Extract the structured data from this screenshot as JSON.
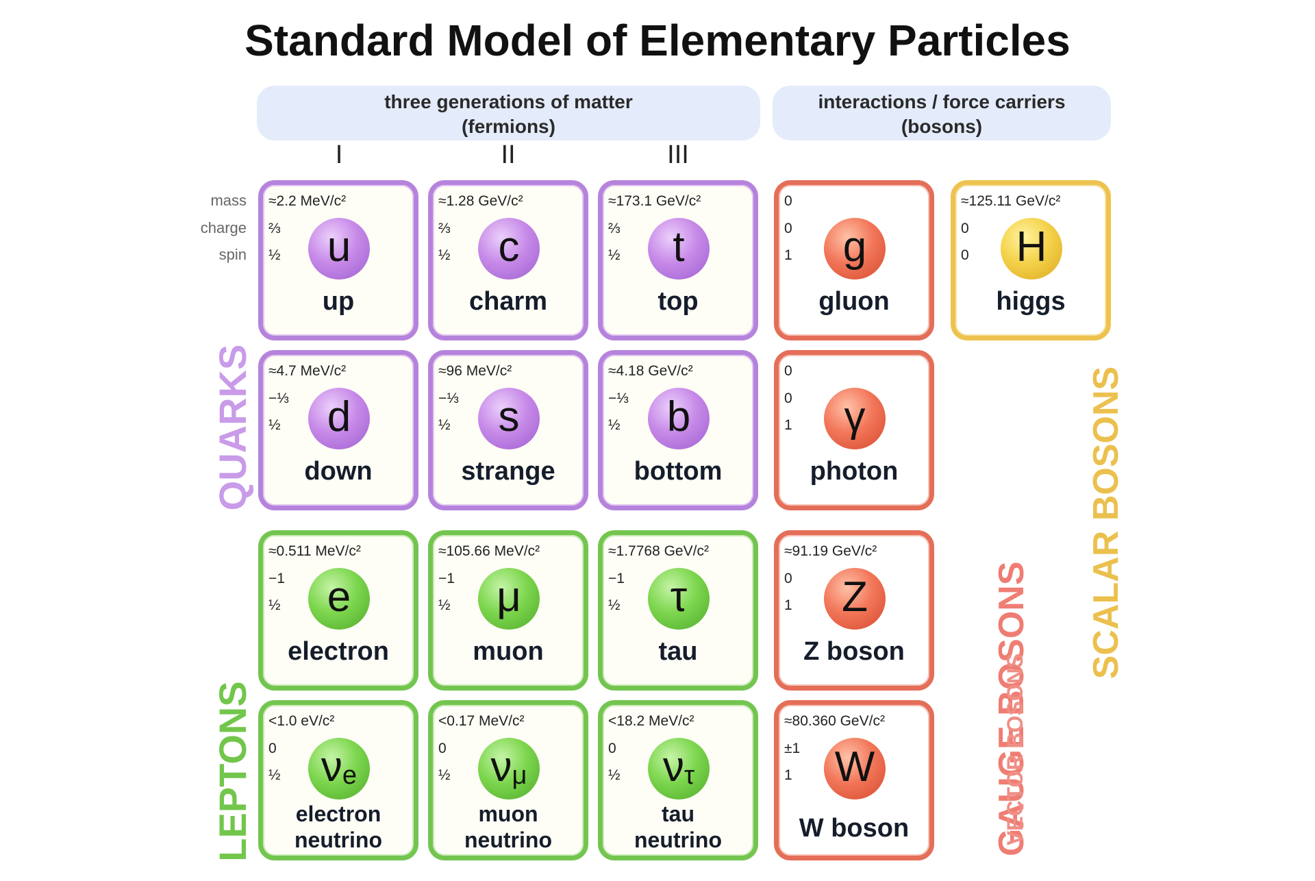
{
  "title": "Standard Model of Elementary Particles",
  "headers": {
    "fermions_line1": "three generations of matter",
    "fermions_line2": "(fermions)",
    "bosons_line1": "interactions / force carriers",
    "bosons_line2": "(bosons)"
  },
  "generations": [
    "I",
    "II",
    "III"
  ],
  "row_labels": {
    "mass": "mass",
    "charge": "charge",
    "spin": "spin"
  },
  "group_labels": {
    "quarks": "QUARKS",
    "leptons": "LEPTONS",
    "gauge_bosons": "GAUGE BOSONS",
    "vector_bosons": "VECTOR BOSONS",
    "scalar_bosons": "SCALAR BOSONS"
  },
  "colors": {
    "quark": "#b583dc",
    "lepton": "#73c54f",
    "gauge": "#e46e58",
    "scalar": "#edc24e",
    "header_bg": "#e4ebfa"
  },
  "particles": {
    "up": {
      "mass": "≈2.2 MeV/c²",
      "charge": "⅔",
      "spin": "½",
      "symbol": "u",
      "name": "up"
    },
    "charm": {
      "mass": "≈1.28 GeV/c²",
      "charge": "⅔",
      "spin": "½",
      "symbol": "c",
      "name": "charm"
    },
    "top": {
      "mass": "≈173.1 GeV/c²",
      "charge": "⅔",
      "spin": "½",
      "symbol": "t",
      "name": "top"
    },
    "gluon": {
      "mass": "0",
      "charge": "0",
      "spin": "1",
      "symbol": "g",
      "name": "gluon"
    },
    "higgs": {
      "mass": "≈125.11 GeV/c²",
      "charge": "0",
      "spin": "0",
      "symbol": "H",
      "name": "higgs"
    },
    "down": {
      "mass": "≈4.7 MeV/c²",
      "charge": "−⅓",
      "spin": "½",
      "symbol": "d",
      "name": "down"
    },
    "strange": {
      "mass": "≈96 MeV/c²",
      "charge": "−⅓",
      "spin": "½",
      "symbol": "s",
      "name": "strange"
    },
    "bottom": {
      "mass": "≈4.18 GeV/c²",
      "charge": "−⅓",
      "spin": "½",
      "symbol": "b",
      "name": "bottom"
    },
    "photon": {
      "mass": "0",
      "charge": "0",
      "spin": "1",
      "symbol": "γ",
      "name": "photon"
    },
    "electron": {
      "mass": "≈0.511 MeV/c²",
      "charge": "−1",
      "spin": "½",
      "symbol": "e",
      "name": "electron"
    },
    "muon": {
      "mass": "≈105.66 MeV/c²",
      "charge": "−1",
      "spin": "½",
      "symbol": "μ",
      "name": "muon"
    },
    "tau": {
      "mass": "≈1.7768 GeV/c²",
      "charge": "−1",
      "spin": "½",
      "symbol": "τ",
      "name": "tau"
    },
    "zboson": {
      "mass": "≈91.19 GeV/c²",
      "charge": "0",
      "spin": "1",
      "symbol": "Z",
      "name": "Z boson"
    },
    "e_neutrino": {
      "mass": "<1.0 eV/c²",
      "charge": "0",
      "spin": "½",
      "symbol": "ν",
      "subscript": "e",
      "name1": "electron",
      "name2": "neutrino"
    },
    "mu_neutrino": {
      "mass": "<0.17 MeV/c²",
      "charge": "0",
      "spin": "½",
      "symbol": "ν",
      "subscript": "μ",
      "name1": "muon",
      "name2": "neutrino"
    },
    "tau_neutrino": {
      "mass": "<18.2 MeV/c²",
      "charge": "0",
      "spin": "½",
      "symbol": "ν",
      "subscript": "τ",
      "name1": "tau",
      "name2": "neutrino"
    },
    "wboson": {
      "mass": "≈80.360 GeV/c²",
      "charge": "±1",
      "spin": "1",
      "symbol": "W",
      "name": "W boson"
    }
  }
}
